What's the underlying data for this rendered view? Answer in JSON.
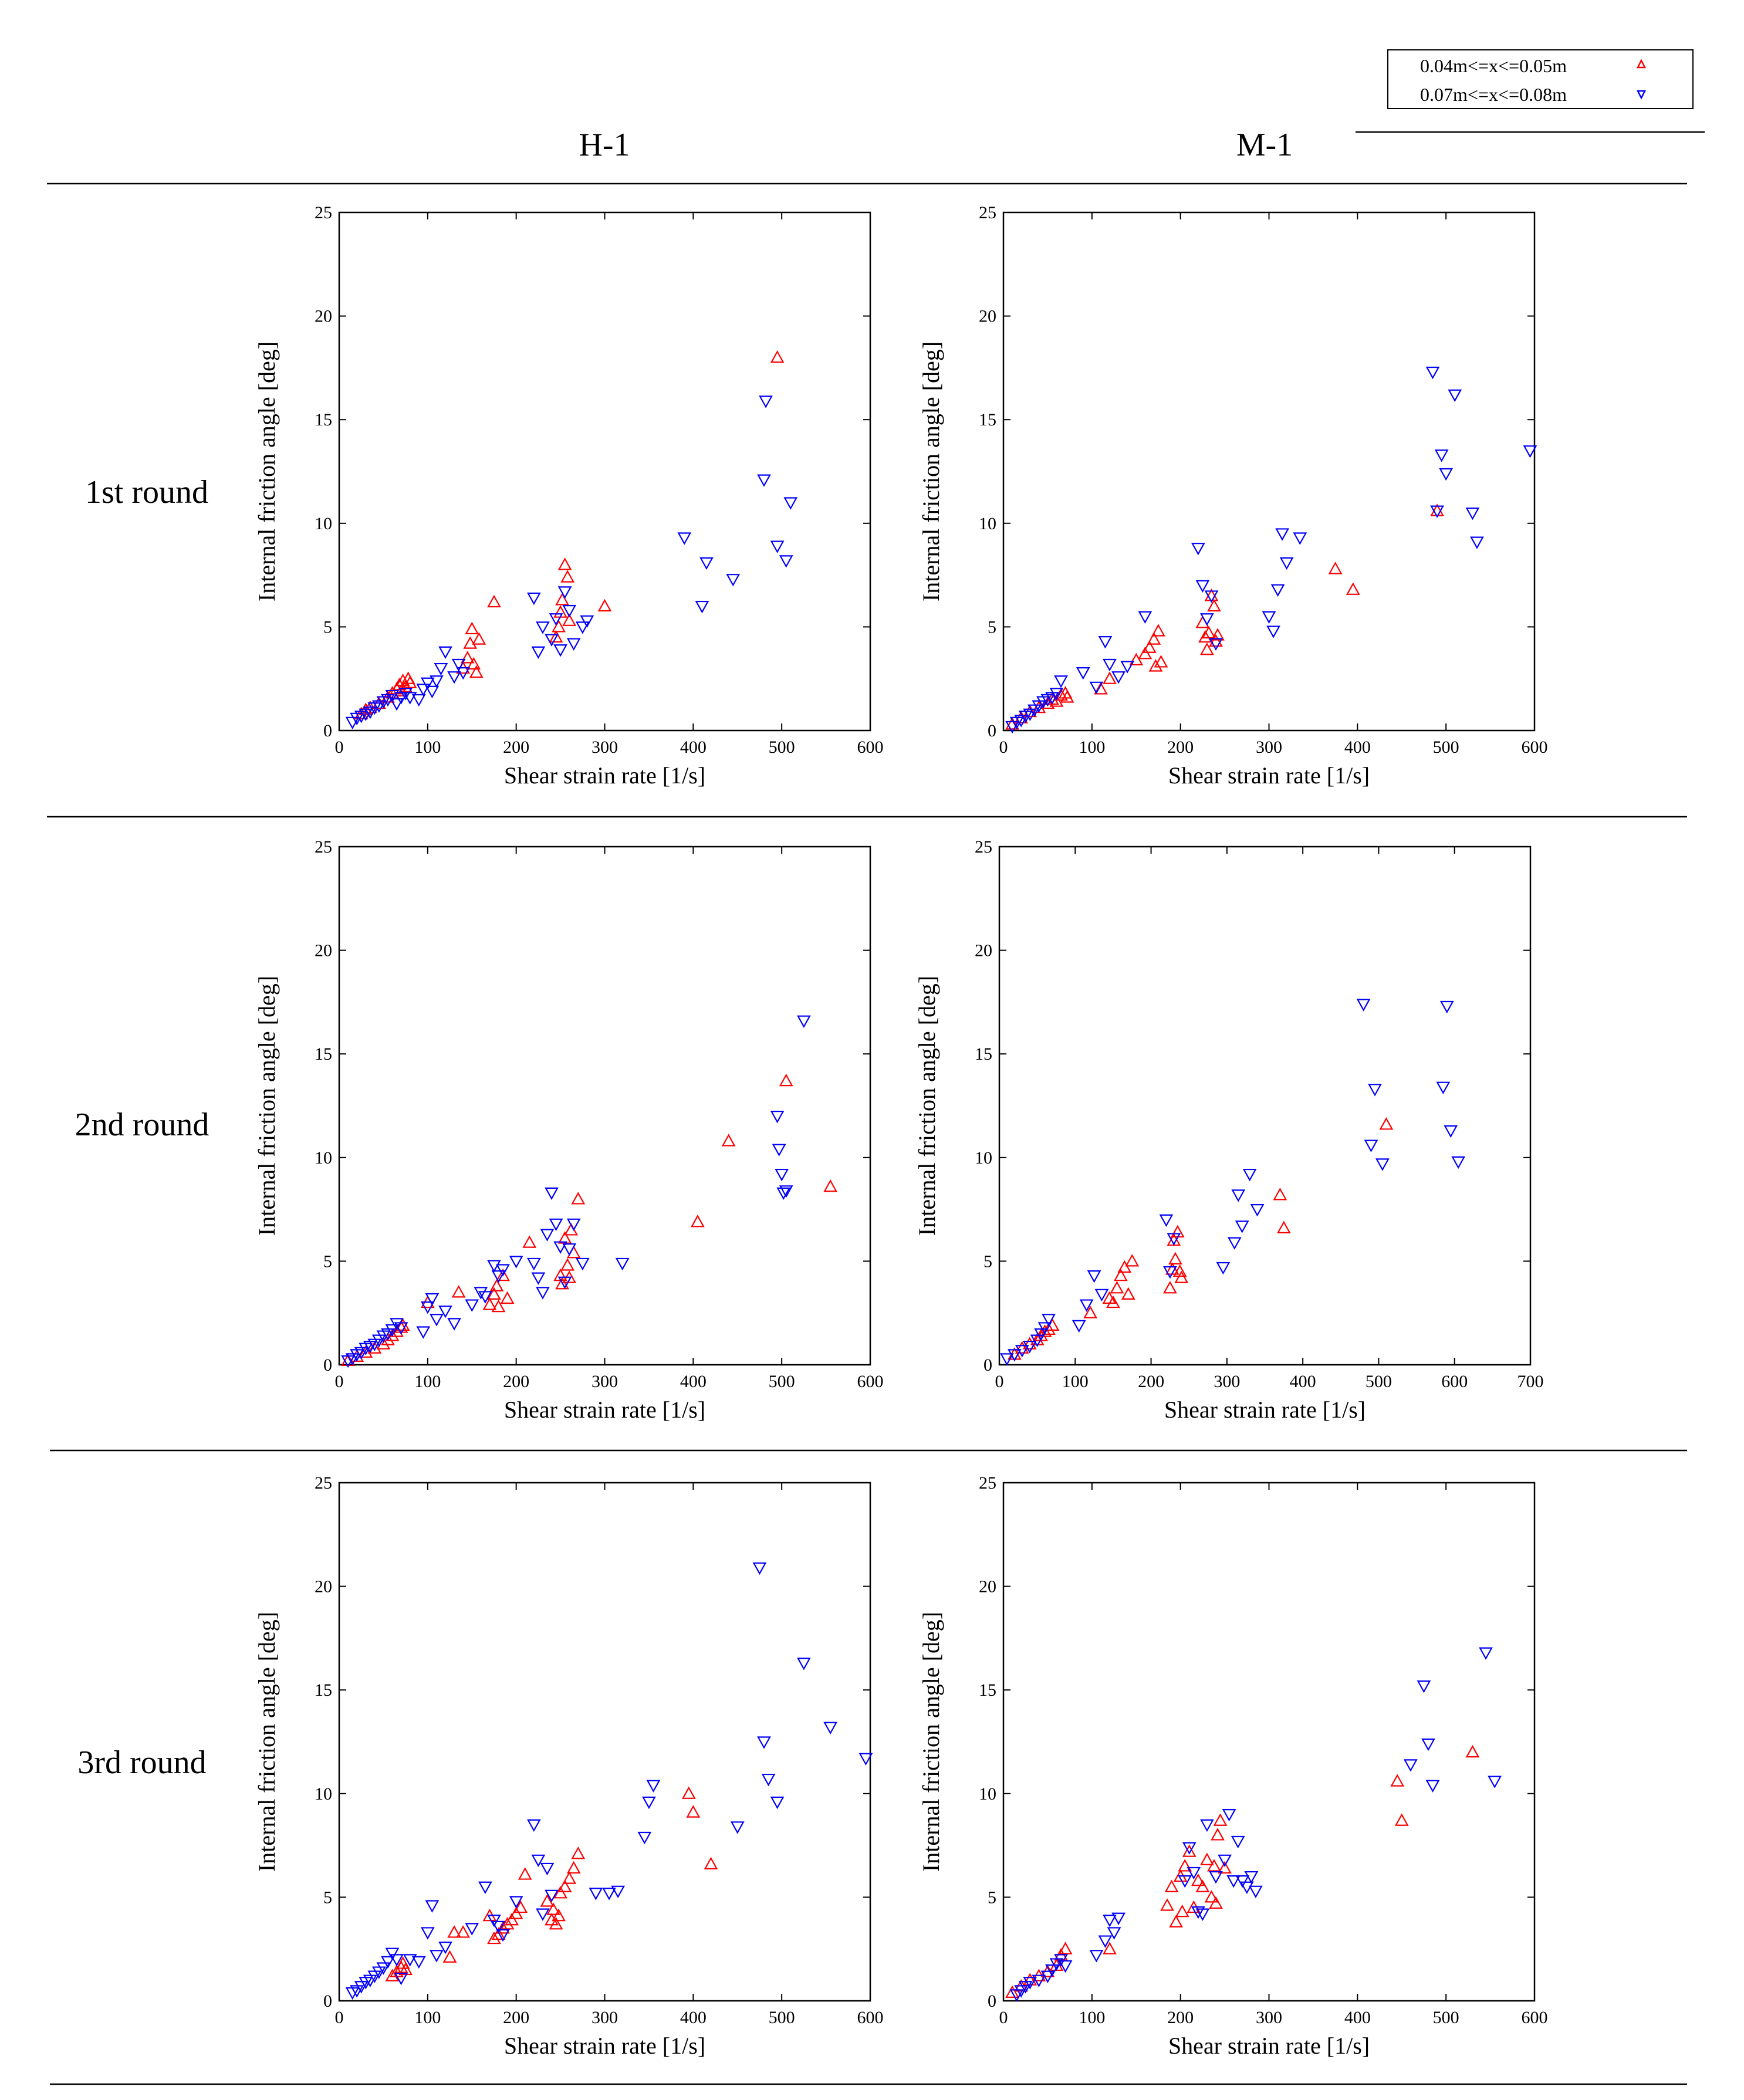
{
  "legend": {
    "entries": [
      {
        "label": "0.04m<=x<=0.05m",
        "marker": "triangle-up",
        "color": "#ff0000"
      },
      {
        "label": "0.07m<=x<=0.08m",
        "marker": "triangle-down",
        "color": "#0000ff"
      }
    ]
  },
  "columns": [
    "H-1",
    "M-1"
  ],
  "rows": [
    "1st round",
    "2nd round",
    "3rd round"
  ],
  "colors": {
    "series_a": "#ff0000",
    "series_b": "#0000ff"
  },
  "chart_data": [
    {
      "id": "h1-1",
      "column": "H-1",
      "row": "1st round",
      "type": "scatter",
      "xlabel": "Shear strain rate [1/s]",
      "ylabel": "Internal friction angle [deg]",
      "xlim": [
        0,
        600
      ],
      "ylim": [
        0,
        25
      ],
      "xticks": [
        0,
        100,
        200,
        300,
        400,
        500,
        600
      ],
      "yticks": [
        0,
        5,
        10,
        15,
        20,
        25
      ],
      "series": [
        {
          "name": "0.04m<=x<=0.05m",
          "x": [
            25,
            30,
            35,
            45,
            55,
            60,
            65,
            68,
            70,
            72,
            75,
            78,
            80,
            140,
            145,
            148,
            150,
            152,
            155,
            158,
            175,
            245,
            248,
            250,
            252,
            255,
            258,
            260,
            300,
            495
          ],
          "y": [
            0.8,
            1.0,
            1.1,
            1.3,
            1.6,
            1.8,
            2.0,
            2.2,
            1.9,
            2.4,
            2.1,
            2.5,
            2.3,
            3.0,
            3.5,
            4.2,
            4.9,
            3.2,
            2.8,
            4.4,
            6.2,
            4.5,
            5.0,
            5.7,
            6.3,
            8.0,
            7.4,
            5.3,
            6.0,
            18.0
          ]
        },
        {
          "name": "0.07m<=x<=0.08m",
          "x": [
            15,
            20,
            25,
            30,
            35,
            40,
            45,
            50,
            55,
            60,
            65,
            70,
            75,
            80,
            90,
            95,
            100,
            105,
            110,
            115,
            120,
            130,
            135,
            140,
            220,
            225,
            230,
            240,
            245,
            250,
            255,
            260,
            265,
            275,
            280,
            390,
            410,
            415,
            445,
            480,
            482,
            495,
            505,
            510
          ],
          "y": [
            0.4,
            0.6,
            0.7,
            0.8,
            0.9,
            1.1,
            1.2,
            1.4,
            1.5,
            1.7,
            1.3,
            1.6,
            1.8,
            1.6,
            1.5,
            2.0,
            2.3,
            1.9,
            2.4,
            3.0,
            3.8,
            2.6,
            3.2,
            2.8,
            6.4,
            3.8,
            5.0,
            4.4,
            5.4,
            3.9,
            6.7,
            5.8,
            4.2,
            5.0,
            5.3,
            9.3,
            6.0,
            8.1,
            7.3,
            12.1,
            15.9,
            8.9,
            8.2,
            11.0
          ]
        }
      ]
    },
    {
      "id": "m1-1",
      "column": "M-1",
      "row": "1st round",
      "type": "scatter",
      "xlabel": "Shear strain rate [1/s]",
      "ylabel": "Internal friction angle [deg]",
      "xlim": [
        0,
        600
      ],
      "ylim": [
        0,
        25
      ],
      "xticks": [
        0,
        100,
        200,
        300,
        400,
        500,
        600
      ],
      "yticks": [
        0,
        5,
        10,
        15,
        20,
        25
      ],
      "series": [
        {
          "name": "0.04m<=x<=0.05m",
          "x": [
            10,
            20,
            30,
            40,
            50,
            55,
            60,
            65,
            70,
            72,
            110,
            120,
            150,
            160,
            165,
            170,
            172,
            175,
            178,
            225,
            228,
            230,
            232,
            235,
            238,
            240,
            242,
            375,
            395,
            490
          ],
          "y": [
            0.3,
            0.6,
            0.9,
            1.1,
            1.3,
            1.5,
            1.4,
            1.7,
            1.8,
            1.6,
            2.0,
            2.5,
            3.4,
            3.7,
            4.0,
            4.4,
            3.1,
            4.8,
            3.3,
            5.2,
            4.5,
            3.9,
            4.7,
            6.5,
            6.0,
            4.3,
            4.6,
            7.8,
            6.8,
            10.6
          ]
        },
        {
          "name": "0.07m<=x<=0.08m",
          "x": [
            10,
            15,
            20,
            25,
            30,
            35,
            40,
            45,
            50,
            55,
            60,
            65,
            90,
            105,
            115,
            120,
            130,
            140,
            160,
            220,
            225,
            230,
            235,
            240,
            300,
            305,
            310,
            315,
            320,
            335,
            485,
            490,
            495,
            500,
            510,
            530,
            535,
            595
          ],
          "y": [
            0.2,
            0.4,
            0.5,
            0.7,
            0.8,
            1.0,
            1.2,
            1.4,
            1.5,
            1.6,
            1.8,
            2.4,
            2.8,
            2.1,
            4.3,
            3.2,
            2.6,
            3.1,
            5.5,
            8.8,
            7.0,
            5.4,
            6.5,
            4.2,
            5.5,
            4.8,
            6.8,
            9.5,
            8.1,
            9.3,
            17.3,
            10.6,
            13.3,
            12.4,
            16.2,
            10.5,
            9.1,
            13.5
          ]
        }
      ]
    },
    {
      "id": "h1-2",
      "column": "H-1",
      "row": "2nd round",
      "type": "scatter",
      "xlabel": "Shear strain rate [1/s]",
      "ylabel": "Internal friction angle [deg]",
      "xlim": [
        0,
        600
      ],
      "ylim": [
        0,
        25
      ],
      "xticks": [
        0,
        100,
        200,
        300,
        400,
        500,
        600
      ],
      "yticks": [
        0,
        5,
        10,
        15,
        20,
        25
      ],
      "series": [
        {
          "name": "0.04m<=x<=0.05m",
          "x": [
            10,
            20,
            30,
            40,
            50,
            55,
            60,
            65,
            70,
            72,
            100,
            135,
            170,
            175,
            178,
            180,
            185,
            190,
            215,
            250,
            252,
            255,
            258,
            260,
            262,
            265,
            270,
            405,
            440,
            505,
            555
          ],
          "y": [
            0.2,
            0.4,
            0.6,
            0.8,
            1.0,
            1.2,
            1.4,
            1.6,
            1.8,
            1.9,
            3.0,
            3.5,
            2.9,
            3.4,
            3.8,
            2.8,
            4.3,
            3.2,
            5.9,
            4.3,
            3.9,
            6.1,
            4.8,
            4.2,
            6.5,
            5.4,
            8.0,
            6.9,
            10.8,
            13.7,
            8.6
          ]
        },
        {
          "name": "0.07m<=x<=0.08m",
          "x": [
            10,
            15,
            20,
            25,
            30,
            35,
            40,
            45,
            50,
            55,
            60,
            65,
            70,
            95,
            100,
            105,
            110,
            120,
            130,
            150,
            160,
            165,
            175,
            180,
            185,
            200,
            220,
            225,
            230,
            235,
            240,
            245,
            250,
            255,
            260,
            265,
            275,
            320,
            495,
            497,
            500,
            502,
            505,
            525
          ],
          "y": [
            0.2,
            0.3,
            0.5,
            0.6,
            0.8,
            0.9,
            1.0,
            1.2,
            1.4,
            1.5,
            1.7,
            2.0,
            1.8,
            1.6,
            2.8,
            3.2,
            2.2,
            2.6,
            2.0,
            2.9,
            3.5,
            3.3,
            4.8,
            4.3,
            4.6,
            5.0,
            4.9,
            4.2,
            3.5,
            6.3,
            8.3,
            6.8,
            5.7,
            4.0,
            5.6,
            6.8,
            4.9,
            4.9,
            12.0,
            10.4,
            9.2,
            8.3,
            8.4,
            16.6
          ]
        }
      ]
    },
    {
      "id": "m1-2",
      "column": "M-1",
      "row": "2nd round",
      "type": "scatter",
      "xlabel": "Shear strain rate [1/s]",
      "ylabel": "Internal friction angle [deg]",
      "xlim": [
        0,
        700
      ],
      "ylim": [
        0,
        25
      ],
      "xticks": [
        0,
        100,
        200,
        300,
        400,
        500,
        600,
        700
      ],
      "yticks": [
        0,
        5,
        10,
        15,
        20,
        25
      ],
      "series": [
        {
          "name": "0.04m<=x<=0.05m",
          "x": [
            20,
            30,
            40,
            50,
            55,
            60,
            65,
            70,
            120,
            145,
            150,
            155,
            160,
            165,
            170,
            175,
            225,
            228,
            230,
            232,
            235,
            238,
            240,
            370,
            375,
            510
          ],
          "y": [
            0.5,
            0.8,
            1.0,
            1.2,
            1.4,
            1.6,
            1.7,
            1.9,
            2.5,
            3.2,
            3.0,
            3.7,
            4.3,
            4.7,
            3.4,
            5.0,
            3.7,
            4.6,
            6.0,
            5.1,
            6.4,
            4.5,
            4.2,
            8.2,
            6.6,
            11.6
          ]
        },
        {
          "name": "0.07m<=x<=0.08m",
          "x": [
            10,
            20,
            30,
            40,
            50,
            55,
            60,
            65,
            105,
            115,
            125,
            135,
            220,
            225,
            230,
            295,
            310,
            315,
            320,
            330,
            340,
            480,
            490,
            495,
            505,
            585,
            590,
            595,
            605
          ],
          "y": [
            0.3,
            0.5,
            0.7,
            0.9,
            1.2,
            1.5,
            1.8,
            2.2,
            1.9,
            2.9,
            4.3,
            3.4,
            7.0,
            4.5,
            6.1,
            4.7,
            5.9,
            8.2,
            6.7,
            9.2,
            7.5,
            17.4,
            10.6,
            13.3,
            9.7,
            13.4,
            17.3,
            11.3,
            9.8
          ]
        }
      ]
    },
    {
      "id": "h1-3",
      "column": "H-1",
      "row": "3rd round",
      "type": "scatter",
      "xlabel": "Shear strain rate [1/s]",
      "ylabel": "Internal friction angle [deg]",
      "xlim": [
        0,
        600
      ],
      "ylim": [
        0,
        25
      ],
      "xticks": [
        0,
        100,
        200,
        300,
        400,
        500,
        600
      ],
      "yticks": [
        0,
        5,
        10,
        15,
        20,
        25
      ],
      "series": [
        {
          "name": "0.04m<=x<=0.05m",
          "x": [
            60,
            65,
            70,
            72,
            75,
            125,
            130,
            140,
            170,
            175,
            180,
            185,
            190,
            195,
            200,
            205,
            210,
            235,
            240,
            242,
            245,
            248,
            250,
            255,
            260,
            265,
            270,
            395,
            400,
            420
          ],
          "y": [
            1.2,
            1.4,
            1.6,
            1.8,
            1.5,
            2.1,
            3.3,
            3.3,
            4.1,
            3.0,
            3.2,
            3.5,
            3.7,
            3.9,
            4.2,
            4.5,
            6.1,
            4.8,
            3.9,
            4.4,
            3.7,
            4.1,
            5.2,
            5.5,
            5.9,
            6.4,
            7.1,
            10.0,
            9.1,
            6.6
          ]
        },
        {
          "name": "0.07m<=x<=0.08m",
          "x": [
            15,
            20,
            25,
            30,
            35,
            40,
            45,
            50,
            55,
            60,
            65,
            70,
            80,
            90,
            100,
            105,
            110,
            120,
            150,
            165,
            175,
            180,
            185,
            200,
            220,
            225,
            230,
            235,
            240,
            290,
            305,
            315,
            345,
            350,
            355,
            450,
            475,
            480,
            485,
            495,
            525,
            555,
            595
          ],
          "y": [
            0.4,
            0.5,
            0.7,
            0.9,
            1.0,
            1.2,
            1.4,
            1.6,
            1.9,
            2.3,
            2.0,
            1.1,
            2.0,
            1.9,
            3.3,
            4.6,
            2.2,
            2.6,
            3.5,
            5.5,
            3.9,
            3.6,
            3.2,
            4.8,
            8.5,
            6.8,
            4.2,
            6.4,
            5.1,
            5.2,
            5.2,
            5.3,
            7.9,
            9.6,
            10.4,
            8.4,
            20.9,
            12.5,
            10.7,
            9.6,
            16.3,
            13.2,
            11.7
          ]
        }
      ]
    },
    {
      "id": "m1-3",
      "column": "M-1",
      "row": "3rd round",
      "type": "scatter",
      "xlabel": "Shear strain rate [1/s]",
      "ylabel": "Internal friction angle [deg]",
      "xlim": [
        0,
        600
      ],
      "ylim": [
        0,
        25
      ],
      "xticks": [
        0,
        100,
        200,
        300,
        400,
        500,
        600
      ],
      "yticks": [
        0,
        5,
        10,
        15,
        20,
        25
      ],
      "series": [
        {
          "name": "0.04m<=x<=0.05m",
          "x": [
            10,
            20,
            30,
            40,
            50,
            60,
            65,
            70,
            120,
            185,
            190,
            195,
            200,
            202,
            205,
            210,
            215,
            220,
            225,
            230,
            235,
            238,
            240,
            242,
            245,
            250,
            445,
            450,
            530
          ],
          "y": [
            0.4,
            0.7,
            1.0,
            1.2,
            1.4,
            1.7,
            2.2,
            2.5,
            2.5,
            4.6,
            5.5,
            3.8,
            6.0,
            4.3,
            6.5,
            7.2,
            4.5,
            5.8,
            5.5,
            6.8,
            5.0,
            6.5,
            4.7,
            8.0,
            8.7,
            6.4,
            10.6,
            8.7,
            12.0
          ]
        },
        {
          "name": "0.07m<=x<=0.08m",
          "x": [
            15,
            20,
            25,
            30,
            40,
            50,
            55,
            60,
            65,
            70,
            105,
            115,
            120,
            125,
            130,
            205,
            210,
            215,
            220,
            225,
            230,
            240,
            250,
            255,
            260,
            265,
            270,
            275,
            280,
            285,
            460,
            475,
            480,
            485,
            545,
            555
          ],
          "y": [
            0.3,
            0.5,
            0.7,
            0.9,
            1.0,
            1.2,
            1.5,
            1.8,
            2.0,
            1.7,
            2.2,
            2.9,
            3.9,
            3.3,
            4.0,
            5.8,
            7.4,
            6.2,
            4.3,
            4.2,
            8.5,
            6.0,
            6.8,
            9.0,
            5.8,
            7.7,
            5.8,
            5.5,
            6.0,
            5.3,
            11.4,
            15.2,
            12.4,
            10.4,
            16.8,
            10.6
          ]
        }
      ]
    }
  ]
}
